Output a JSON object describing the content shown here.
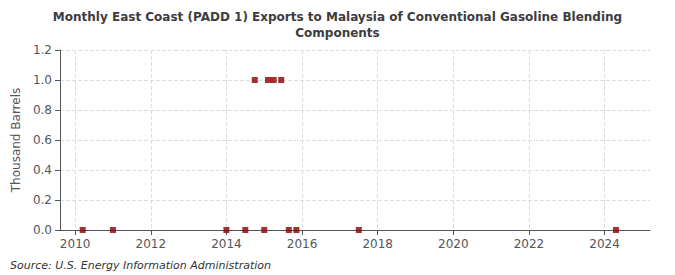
{
  "chart_data": {
    "type": "scatter",
    "title": "Monthly East Coast (PADD 1) Exports to Malaysia of Conventional Gasoline Blending\nComponents",
    "ylabel": "Thousand Barrels",
    "annotations": [
      "Source: U.S. Energy Information Administration"
    ],
    "x": [
      2010.2,
      2011.0,
      2014.0,
      2014.5,
      2014.75,
      2015.0,
      2015.1,
      2015.25,
      2015.45,
      2015.65,
      2015.85,
      2017.5,
      2024.3
    ],
    "values": [
      0.0,
      0.0,
      0.0,
      0.0,
      1.0,
      0.0,
      1.0,
      1.0,
      1.0,
      0.0,
      0.0,
      0.0,
      0.0
    ],
    "color": "#8b0000",
    "marker": "square",
    "xlim": [
      2009.6,
      2025.2
    ],
    "xticks": [
      2010,
      2012,
      2014,
      2016,
      2018,
      2020,
      2022,
      2024
    ],
    "ylim": [
      0.0,
      1.2
    ],
    "yticks": [
      {
        "value": 0.0,
        "label": "0.0"
      },
      0.2,
      0.4,
      0.6,
      0.8,
      {
        "value": 1.0,
        "label": "1.0"
      },
      1.2
    ],
    "grid": true
  }
}
